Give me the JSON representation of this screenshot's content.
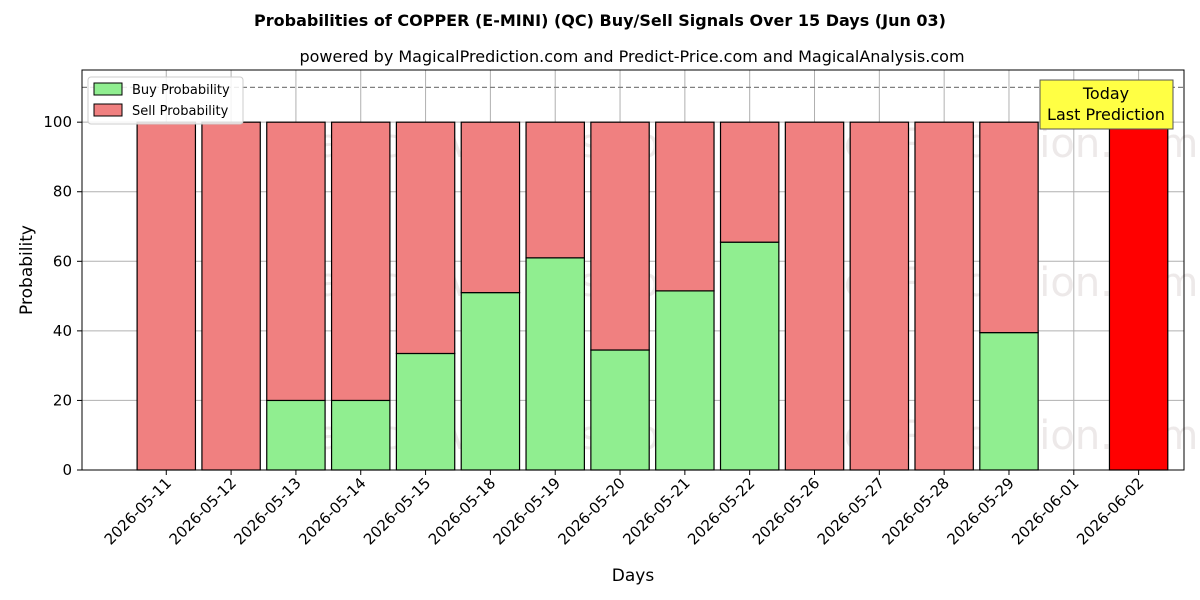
{
  "chart_data": {
    "type": "bar",
    "stacked": true,
    "title": "Probabilities of COPPER (E-MINI) (QC) Buy/Sell Signals Over 15 Days (Jun 03)",
    "subtitle": "powered by MagicalPrediction.com and Predict-Price.com and MagicalAnalysis.com",
    "xlabel": "Days",
    "ylabel": "Probability",
    "ylim": [
      0,
      115
    ],
    "yticks": [
      0,
      20,
      40,
      60,
      80,
      100
    ],
    "grid": true,
    "legend_position": "top-left",
    "reference_line": 110,
    "categories": [
      "2026-05-11",
      "2026-05-12",
      "2026-05-13",
      "2026-05-14",
      "2026-05-15",
      "2026-05-18",
      "2026-05-19",
      "2026-05-20",
      "2026-05-21",
      "2026-05-22",
      "2026-05-26",
      "2026-05-27",
      "2026-05-28",
      "2026-05-29",
      "2026-06-01",
      "2026-06-02"
    ],
    "series": [
      {
        "name": "Buy Probability",
        "color": "#90ee90",
        "values": [
          0,
          0,
          20,
          20,
          33.5,
          51,
          61,
          34.5,
          51.5,
          65.5,
          0,
          0,
          0,
          39.5,
          null,
          0
        ]
      },
      {
        "name": "Sell Probability",
        "color": "#f08080",
        "values": [
          100,
          100,
          80,
          80,
          66.5,
          49,
          39,
          65.5,
          48.5,
          34.5,
          100,
          100,
          100,
          60.5,
          null,
          100
        ]
      }
    ],
    "highlight": {
      "category": "2026-06-02",
      "color": "#ff0000"
    },
    "annotation": {
      "line1": "Today",
      "line2": "Last Prediction",
      "color": "#ffff44"
    },
    "watermarks": [
      "MagicalAnalysis.com",
      "MagicalPrediction.com"
    ]
  }
}
